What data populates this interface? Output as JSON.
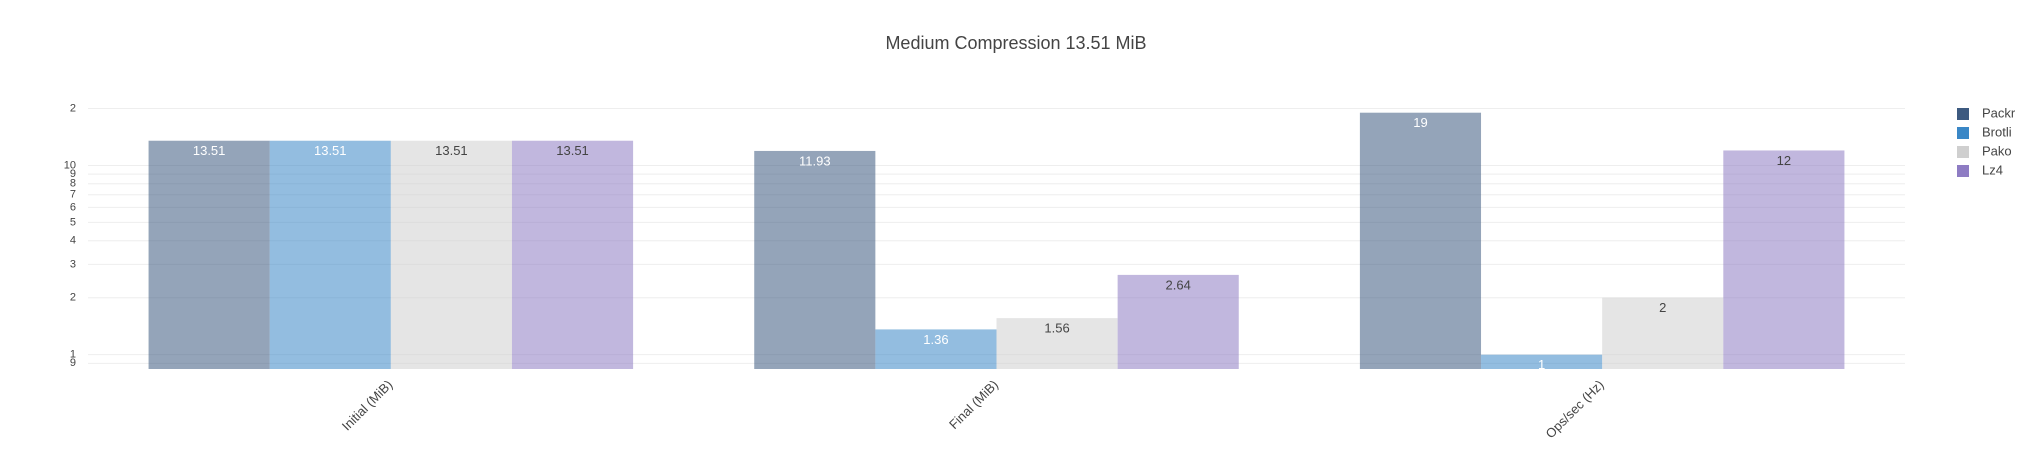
{
  "chart_data": {
    "type": "bar",
    "title": "Medium Compression 13.51 MiB",
    "categories": [
      "Initial (MiB)",
      "Final (MiB)",
      "Ops/sec (Hz)"
    ],
    "series": [
      {
        "name": "Packr",
        "color": "#3d5a80",
        "values": [
          13.51,
          11.93,
          19
        ]
      },
      {
        "name": "Brotli",
        "color": "#3a87c6",
        "values": [
          13.51,
          1.36,
          1
        ]
      },
      {
        "name": "Pako",
        "color": "#cfcfcf",
        "values": [
          13.51,
          1.56,
          2
        ]
      },
      {
        "name": "Lz4",
        "color": "#8e7cc3",
        "values": [
          13.51,
          2.64,
          12
        ]
      }
    ],
    "log_y": true,
    "ylim": [
      0.84,
      23
    ],
    "yticks": [
      {
        "value": 0.9,
        "label": "9"
      },
      1,
      2,
      3,
      4,
      5,
      6,
      7,
      8,
      9,
      10,
      {
        "value": 20,
        "label": "2"
      }
    ],
    "grid": true,
    "legend": "right"
  }
}
